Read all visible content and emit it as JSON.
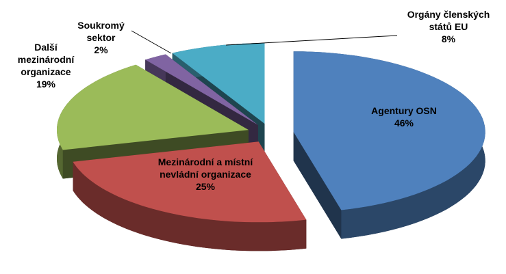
{
  "chart_data": {
    "type": "pie",
    "categories": [
      "Agentury OSN",
      "Mezinárodní a místní nevládní organizace",
      "Další mezinárodní organizace",
      "Soukromý sektor",
      "Orgány členských států EU"
    ],
    "values": [
      46,
      25,
      19,
      2,
      8
    ],
    "value_labels": [
      "46%",
      "25%",
      "19%",
      "2%",
      "8%"
    ],
    "colors": [
      "#4f81bd",
      "#c0504d",
      "#9bbb59",
      "#8064a2",
      "#4bacc6"
    ]
  }
}
